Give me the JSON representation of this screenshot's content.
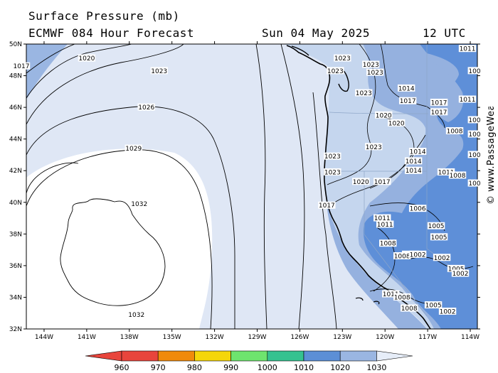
{
  "header": {
    "title": "Surface Pressure (mb)",
    "model": "ECMWF 084 Hour Forecast",
    "date": "Sun 04 May 2025",
    "time": "12 UTC"
  },
  "watermark": "© www.PassageWeather.com",
  "axes": {
    "lat_labels": [
      "50N",
      "48N",
      "46N",
      "44N",
      "42N",
      "40N",
      "38N",
      "36N",
      "34N",
      "32N"
    ],
    "lon_labels": [
      "144W",
      "141W",
      "138W",
      "135W",
      "132W",
      "129W",
      "126W",
      "123W",
      "120W",
      "117W",
      "114W"
    ]
  },
  "isobar_labels": [
    {
      "text": "1017",
      "lon": -145.6,
      "lat": 48.6
    },
    {
      "text": "1020",
      "lon": -141.0,
      "lat": 49.1
    },
    {
      "text": "1023",
      "lon": -135.9,
      "lat": 48.3
    },
    {
      "text": "1026",
      "lon": -136.8,
      "lat": 46.0
    },
    {
      "text": "1029",
      "lon": -137.7,
      "lat": 43.4
    },
    {
      "text": "1032",
      "lon": -137.3,
      "lat": 39.9
    },
    {
      "text": "1032",
      "lon": -137.5,
      "lat": 32.9
    },
    {
      "text": "1023",
      "lon": -123.0,
      "lat": 49.1
    },
    {
      "text": "1023",
      "lon": -123.5,
      "lat": 48.3
    },
    {
      "text": "1023",
      "lon": -121.0,
      "lat": 48.7
    },
    {
      "text": "1023",
      "lon": -120.7,
      "lat": 48.2
    },
    {
      "text": "1014",
      "lon": -118.5,
      "lat": 47.2
    },
    {
      "text": "1023",
      "lon": -121.5,
      "lat": 46.9
    },
    {
      "text": "1017",
      "lon": -118.4,
      "lat": 46.4
    },
    {
      "text": "1017",
      "lon": -116.2,
      "lat": 46.3
    },
    {
      "text": "1017",
      "lon": -116.2,
      "lat": 45.7
    },
    {
      "text": "1020",
      "lon": -120.1,
      "lat": 45.5
    },
    {
      "text": "1020",
      "lon": -119.2,
      "lat": 45.0
    },
    {
      "text": "1008",
      "lon": -115.1,
      "lat": 44.5
    },
    {
      "text": "1023",
      "lon": -120.8,
      "lat": 43.5
    },
    {
      "text": "1014",
      "lon": -117.7,
      "lat": 43.2
    },
    {
      "text": "1023",
      "lon": -123.7,
      "lat": 42.9
    },
    {
      "text": "1014",
      "lon": -118.0,
      "lat": 42.6
    },
    {
      "text": "1014",
      "lon": -118.0,
      "lat": 42.0
    },
    {
      "text": "1011",
      "lon": -115.7,
      "lat": 41.9
    },
    {
      "text": "1008",
      "lon": -114.9,
      "lat": 41.7
    },
    {
      "text": "1023",
      "lon": -123.7,
      "lat": 41.9
    },
    {
      "text": "1020",
      "lon": -121.7,
      "lat": 41.3
    },
    {
      "text": "1017",
      "lon": -120.2,
      "lat": 41.3
    },
    {
      "text": "1017",
      "lon": -124.1,
      "lat": 39.8
    },
    {
      "text": "1011",
      "lon": -120.2,
      "lat": 39.0
    },
    {
      "text": "1011",
      "lon": -120.0,
      "lat": 38.6
    },
    {
      "text": "1006",
      "lon": -117.7,
      "lat": 39.6
    },
    {
      "text": "1005",
      "lon": -116.4,
      "lat": 38.5
    },
    {
      "text": "1005",
      "lon": -116.2,
      "lat": 37.8
    },
    {
      "text": "1008",
      "lon": -119.8,
      "lat": 37.4
    },
    {
      "text": "1005",
      "lon": -118.2,
      "lat": 36.7
    },
    {
      "text": "1008",
      "lon": -118.8,
      "lat": 36.6
    },
    {
      "text": "1002",
      "lon": -117.7,
      "lat": 36.7
    },
    {
      "text": "1002",
      "lon": -116.0,
      "lat": 36.5
    },
    {
      "text": "1005",
      "lon": -115.0,
      "lat": 35.8
    },
    {
      "text": "1002",
      "lon": -114.7,
      "lat": 35.5
    },
    {
      "text": "1011",
      "lon": -119.6,
      "lat": 34.2
    },
    {
      "text": "1008",
      "lon": -118.8,
      "lat": 34.0
    },
    {
      "text": "1008",
      "lon": -118.3,
      "lat": 33.3
    },
    {
      "text": "1005",
      "lon": -116.6,
      "lat": 33.5
    },
    {
      "text": "1002",
      "lon": -115.6,
      "lat": 33.1
    },
    {
      "text": "1011",
      "lon": -114.2,
      "lat": 49.7
    },
    {
      "text": "1011",
      "lon": -114.2,
      "lat": 46.5
    },
    {
      "text": "100",
      "lon": -113.7,
      "lat": 45.2
    },
    {
      "text": "100",
      "lon": -113.7,
      "lat": 44.3
    },
    {
      "text": "100",
      "lon": -113.7,
      "lat": 43.0
    },
    {
      "text": "100",
      "lon": -113.7,
      "lat": 41.2
    },
    {
      "text": "100",
      "lon": -113.7,
      "lat": 48.3
    }
  ],
  "colorbar": {
    "labels": [
      "960",
      "970",
      "980",
      "990",
      "1000",
      "1010",
      "1020",
      "1030"
    ],
    "colors": [
      "#e8453c",
      "#f08a0c",
      "#f5d60a",
      "#6ee46e",
      "#35c290",
      "#5c8fd6",
      "#9ab6e2",
      "#e6edf8"
    ]
  },
  "colors": {
    "ocean_far": "#dfe7f5",
    "high_core": "#ffffff",
    "land": "#c5d6ee",
    "low_mid": "#95b1df",
    "low_deep": "#5e8fd8",
    "isobar": "#000000"
  }
}
